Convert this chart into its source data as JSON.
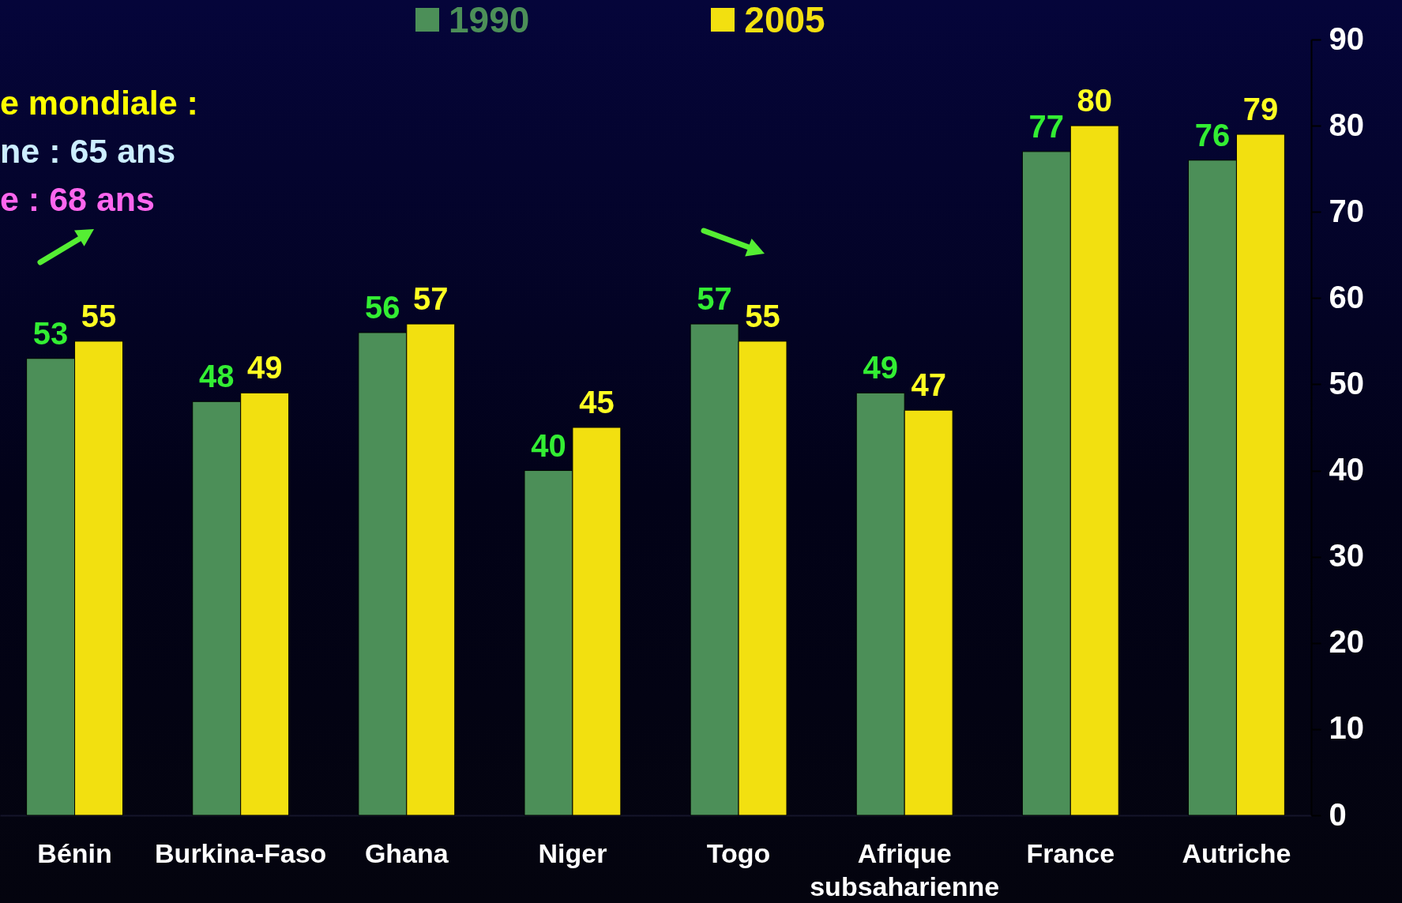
{
  "chart_data": {
    "type": "bar",
    "categories": [
      "Bénin",
      "Burkina-Faso",
      "Ghana",
      "Niger",
      "Togo",
      "Afrique subsaharienne",
      "France",
      "Autriche"
    ],
    "series": [
      {
        "name": "1990",
        "color": "#4c8f58",
        "values": [
          53,
          48,
          56,
          40,
          57,
          49,
          77,
          76
        ]
      },
      {
        "name": "2005",
        "color": "#f2e010",
        "values": [
          55,
          49,
          57,
          45,
          55,
          47,
          80,
          79
        ]
      }
    ],
    "ylim": [
      0,
      90
    ],
    "yticks": [
      0,
      10,
      20,
      30,
      40,
      50,
      60,
      70,
      80,
      90
    ],
    "data_labels": true,
    "legend": "top",
    "annotations": [
      "e mondiale :",
      "ne : 65 ans",
      "e : 68 ans"
    ]
  }
}
